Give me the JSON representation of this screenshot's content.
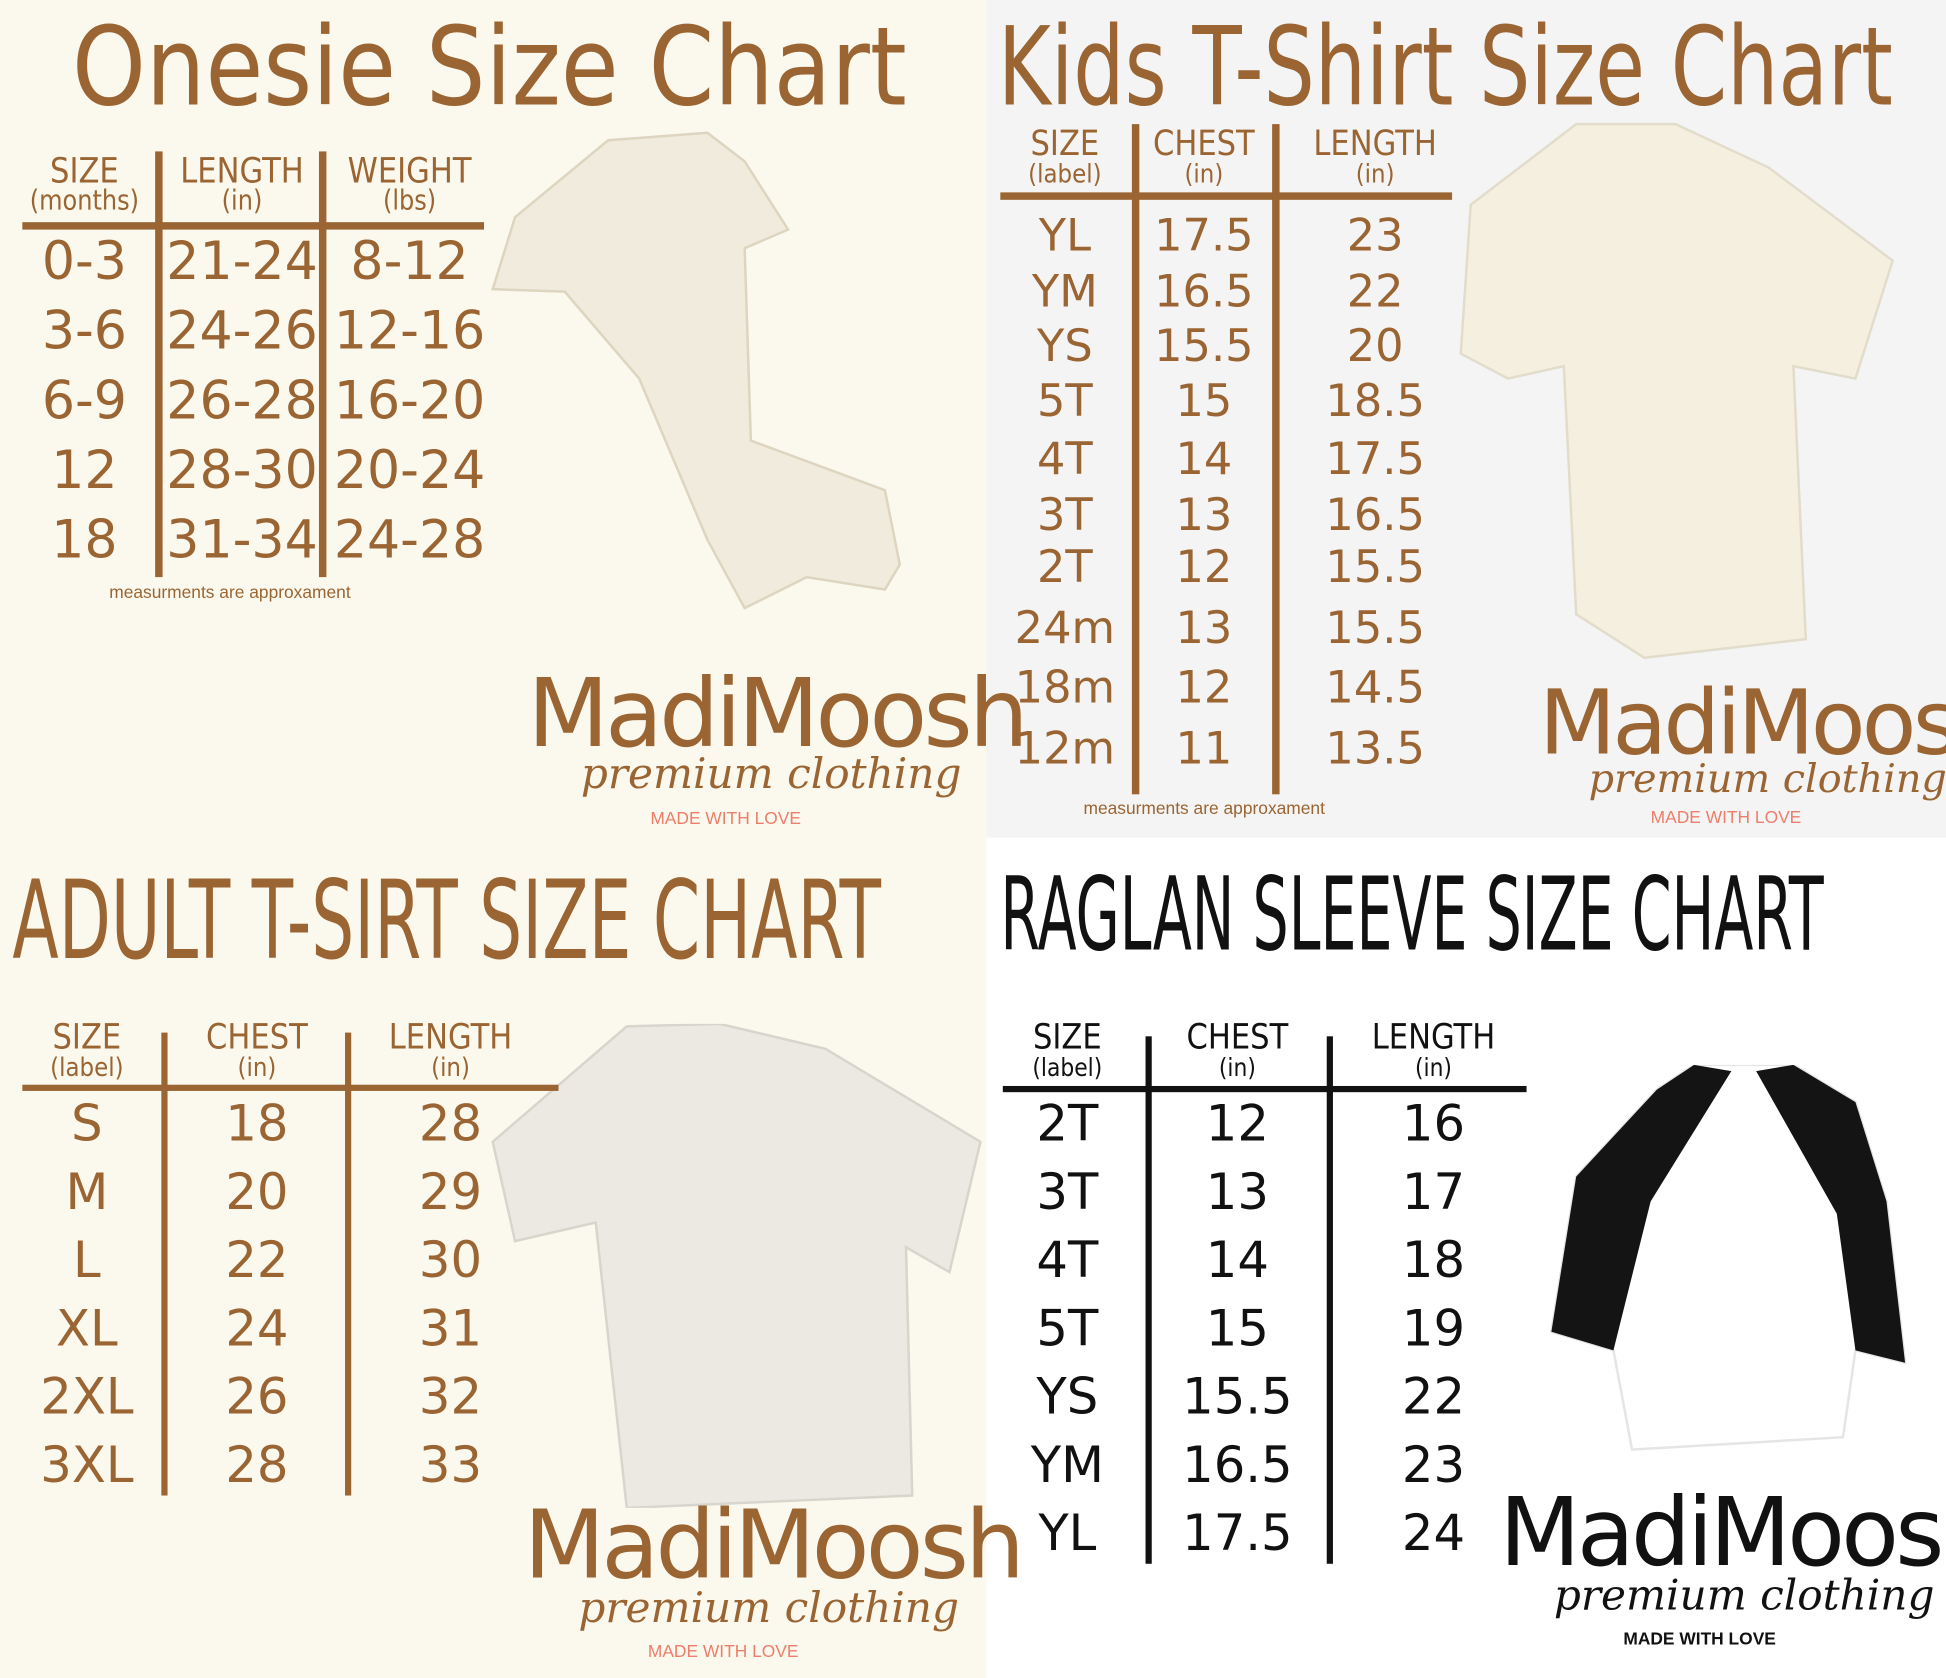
{
  "colors": {
    "brown": "#9a6532",
    "cream": "#fbf8ee",
    "grey": "#f4f4f4",
    "love": "#ec7f6b",
    "black": "#111111"
  },
  "brand": {
    "name": "MadiMoosh",
    "tagline": "premium clothing",
    "motto": "MADE WITH LOVE"
  },
  "note": "measurments are approxament",
  "charts": [
    {
      "title": "Onesie Size Chart",
      "headers": [
        {
          "label": "SIZE",
          "unit": "(months)"
        },
        {
          "label": "LENGTH",
          "unit": "(in)"
        },
        {
          "label": "WEIGHT",
          "unit": "(lbs)"
        }
      ],
      "rows": [
        [
          "0-3",
          "21-24",
          "8-12"
        ],
        [
          "3-6",
          "24-26",
          "12-16"
        ],
        [
          "6-9",
          "26-28",
          "16-20"
        ],
        [
          "12",
          "28-30",
          "20-24"
        ],
        [
          "18",
          "31-34",
          "24-28"
        ]
      ],
      "garment": "onesie"
    },
    {
      "title": "Kids T-Shirt Size Chart",
      "headers": [
        {
          "label": "SIZE",
          "unit": "(label)"
        },
        {
          "label": "CHEST",
          "unit": "(in)"
        },
        {
          "label": "LENGTH",
          "unit": "(in)"
        }
      ],
      "rows": [
        [
          "YL",
          "17.5",
          "23"
        ],
        [
          "YM",
          "16.5",
          "22"
        ],
        [
          "YS",
          "15.5",
          "20"
        ],
        [
          "5T",
          "15",
          "18.5"
        ],
        [
          "4T",
          "14",
          "17.5"
        ],
        [
          "3T",
          "13",
          "16.5"
        ],
        [
          "2T",
          "12",
          "15.5"
        ],
        [
          "24m",
          "13",
          "15.5"
        ],
        [
          "18m",
          "12",
          "14.5"
        ],
        [
          "12m",
          "11",
          "13.5"
        ]
      ],
      "garment": "kids-tshirt"
    },
    {
      "title": "ADULT T-SIRT SIZE CHART",
      "headers": [
        {
          "label": "SIZE",
          "unit": "(label)"
        },
        {
          "label": "CHEST",
          "unit": "(in)"
        },
        {
          "label": "LENGTH",
          "unit": "(in)"
        }
      ],
      "rows": [
        [
          "S",
          "18",
          "28"
        ],
        [
          "M",
          "20",
          "29"
        ],
        [
          "L",
          "22",
          "30"
        ],
        [
          "XL",
          "24",
          "31"
        ],
        [
          "2XL",
          "26",
          "32"
        ],
        [
          "3XL",
          "28",
          "33"
        ]
      ],
      "garment": "adult-tshirt"
    },
    {
      "title": "RAGLAN SLEEVE SIZE CHART",
      "headers": [
        {
          "label": "SIZE",
          "unit": "(label)"
        },
        {
          "label": "CHEST",
          "unit": "(in)"
        },
        {
          "label": "LENGTH",
          "unit": "(in)"
        }
      ],
      "rows": [
        [
          "2T",
          "12",
          "16"
        ],
        [
          "3T",
          "13",
          "17"
        ],
        [
          "4T",
          "14",
          "18"
        ],
        [
          "5T",
          "15",
          "19"
        ],
        [
          "YS",
          "15.5",
          "22"
        ],
        [
          "YM",
          "16.5",
          "23"
        ],
        [
          "YL",
          "17.5",
          "24"
        ]
      ],
      "garment": "raglan"
    }
  ]
}
